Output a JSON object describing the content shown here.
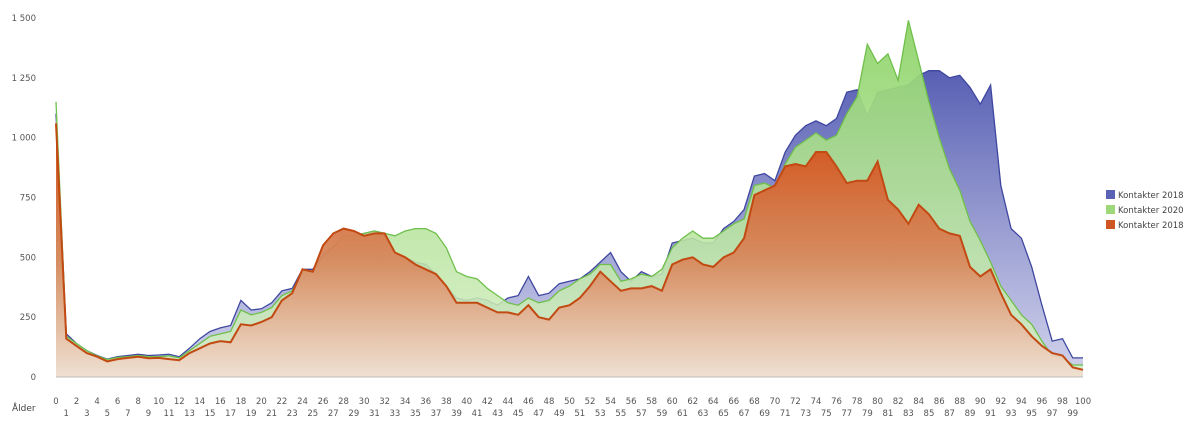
{
  "caption_fragment": "",
  "chart_data": {
    "type": "area",
    "title": "",
    "xlabel": "Ålder",
    "ylabel": "",
    "xlim": [
      0,
      100
    ],
    "ylim": [
      0,
      1500
    ],
    "y_ticks": [
      0,
      250,
      500,
      750,
      1000,
      1250,
      1500
    ],
    "y_tick_labels": [
      "0",
      "250",
      "500",
      "750",
      "1 000",
      "1 250",
      "1 500"
    ],
    "x_ticks_even": [
      "0",
      "2",
      "4",
      "6",
      "8",
      "10",
      "12",
      "14",
      "16",
      "18",
      "20",
      "22",
      "24",
      "26",
      "28",
      "30",
      "32",
      "34",
      "36",
      "38",
      "40",
      "42",
      "44",
      "46",
      "48",
      "50",
      "52",
      "54",
      "56",
      "58",
      "60",
      "62",
      "64",
      "66",
      "68",
      "70",
      "72",
      "74",
      "76",
      "78",
      "80",
      "82",
      "84",
      "86",
      "88",
      "90",
      "92",
      "94",
      "96",
      "98",
      "100"
    ],
    "x_ticks_odd": [
      "1",
      "3",
      "5",
      "7",
      "9",
      "11",
      "13",
      "15",
      "17",
      "19",
      "21",
      "23",
      "25",
      "27",
      "29",
      "31",
      "33",
      "35",
      "37",
      "39",
      "41",
      "43",
      "45",
      "47",
      "49",
      "51",
      "53",
      "55",
      "57",
      "59",
      "61",
      "63",
      "65",
      "67",
      "69",
      "71",
      "73",
      "75",
      "77",
      "79",
      "81",
      "83",
      "85",
      "87",
      "89",
      "91",
      "93",
      "95",
      "97",
      "99"
    ],
    "grid": false,
    "legend_position": "right",
    "series": [
      {
        "name": "Kontakter 2018",
        "color": "#5a62b6",
        "x": [
          0,
          1,
          2,
          3,
          4,
          5,
          6,
          7,
          8,
          9,
          10,
          11,
          12,
          13,
          14,
          15,
          16,
          17,
          18,
          19,
          20,
          21,
          22,
          23,
          24,
          25,
          26,
          27,
          28,
          29,
          30,
          31,
          32,
          33,
          34,
          35,
          36,
          37,
          38,
          39,
          40,
          41,
          42,
          43,
          44,
          45,
          46,
          47,
          48,
          49,
          50,
          51,
          52,
          53,
          54,
          55,
          56,
          57,
          58,
          59,
          60,
          61,
          62,
          63,
          64,
          65,
          66,
          67,
          68,
          69,
          70,
          71,
          72,
          73,
          74,
          75,
          76,
          77,
          78,
          79,
          80,
          81,
          82,
          83,
          84,
          85,
          86,
          87,
          88,
          89,
          90,
          91,
          92,
          93,
          94,
          95,
          96,
          97,
          98,
          99,
          100
        ],
        "y": [
          1100,
          180,
          140,
          110,
          90,
          75,
          85,
          90,
          95,
          90,
          92,
          95,
          85,
          120,
          160,
          190,
          205,
          215,
          320,
          280,
          285,
          310,
          360,
          370,
          450,
          450,
          510,
          545,
          590,
          590,
          600,
          610,
          600,
          520,
          500,
          480,
          470,
          430,
          380,
          330,
          320,
          330,
          320,
          300,
          330,
          340,
          420,
          340,
          350,
          390,
          400,
          410,
          440,
          480,
          520,
          440,
          400,
          440,
          420,
          430,
          560,
          570,
          580,
          560,
          560,
          620,
          650,
          700,
          840,
          850,
          820,
          940,
          1010,
          1050,
          1070,
          1050,
          1080,
          1190,
          1200,
          1090,
          1190,
          1200,
          1210,
          1220,
          1260,
          1280,
          1280,
          1250,
          1260,
          1210,
          1140,
          1220,
          800,
          620,
          580,
          460,
          300,
          150,
          160,
          80,
          80
        ]
      },
      {
        "name": "Kontakter 2020",
        "color": "#9ed87a",
        "x": [
          0,
          1,
          2,
          3,
          4,
          5,
          6,
          7,
          8,
          9,
          10,
          11,
          12,
          13,
          14,
          15,
          16,
          17,
          18,
          19,
          20,
          21,
          22,
          23,
          24,
          25,
          26,
          27,
          28,
          29,
          30,
          31,
          32,
          33,
          34,
          35,
          36,
          37,
          38,
          39,
          40,
          41,
          42,
          43,
          44,
          45,
          46,
          47,
          48,
          49,
          50,
          51,
          52,
          53,
          54,
          55,
          56,
          57,
          58,
          59,
          60,
          61,
          62,
          63,
          64,
          65,
          66,
          67,
          68,
          69,
          70,
          71,
          72,
          73,
          74,
          75,
          76,
          77,
          78,
          79,
          80,
          81,
          82,
          83,
          84,
          85,
          86,
          87,
          88,
          89,
          90,
          91,
          92,
          93,
          94,
          95,
          96,
          97,
          98,
          99,
          100
        ],
        "y": [
          1150,
          170,
          140,
          110,
          88,
          73,
          82,
          85,
          90,
          85,
          85,
          88,
          80,
          110,
          140,
          170,
          180,
          190,
          280,
          260,
          270,
          290,
          340,
          360,
          440,
          440,
          500,
          540,
          590,
          590,
          600,
          610,
          600,
          590,
          610,
          620,
          620,
          600,
          540,
          440,
          420,
          410,
          370,
          340,
          310,
          300,
          330,
          310,
          320,
          360,
          380,
          410,
          430,
          470,
          470,
          400,
          410,
          430,
          420,
          450,
          540,
          580,
          610,
          580,
          580,
          610,
          640,
          660,
          800,
          810,
          790,
          890,
          960,
          990,
          1020,
          990,
          1010,
          1100,
          1170,
          1390,
          1310,
          1350,
          1240,
          1490,
          1320,
          1150,
          1000,
          870,
          780,
          650,
          570,
          480,
          380,
          320,
          260,
          220,
          150,
          90,
          80,
          50,
          50
        ]
      },
      {
        "name": "Kontakter 2018",
        "color": "#cf5522",
        "x": [
          0,
          1,
          2,
          3,
          4,
          5,
          6,
          7,
          8,
          9,
          10,
          11,
          12,
          13,
          14,
          15,
          16,
          17,
          18,
          19,
          20,
          21,
          22,
          23,
          24,
          25,
          26,
          27,
          28,
          29,
          30,
          31,
          32,
          33,
          34,
          35,
          36,
          37,
          38,
          39,
          40,
          41,
          42,
          43,
          44,
          45,
          46,
          47,
          48,
          49,
          50,
          51,
          52,
          53,
          54,
          55,
          56,
          57,
          58,
          59,
          60,
          61,
          62,
          63,
          64,
          65,
          66,
          67,
          68,
          69,
          70,
          71,
          72,
          73,
          74,
          75,
          76,
          77,
          78,
          79,
          80,
          81,
          82,
          83,
          84,
          85,
          86,
          87,
          88,
          89,
          90,
          91,
          92,
          93,
          94,
          95,
          96,
          97,
          98,
          99,
          100
        ],
        "y": [
          1060,
          160,
          130,
          100,
          85,
          65,
          75,
          80,
          85,
          78,
          80,
          75,
          70,
          100,
          120,
          140,
          150,
          145,
          220,
          215,
          230,
          250,
          320,
          350,
          450,
          440,
          550,
          600,
          620,
          610,
          590,
          600,
          600,
          520,
          500,
          470,
          450,
          430,
          380,
          310,
          310,
          310,
          290,
          270,
          270,
          260,
          300,
          250,
          240,
          290,
          300,
          330,
          380,
          440,
          400,
          360,
          370,
          370,
          380,
          360,
          470,
          490,
          500,
          470,
          460,
          500,
          520,
          580,
          760,
          780,
          800,
          880,
          890,
          880,
          940,
          940,
          880,
          810,
          820,
          820,
          900,
          740,
          700,
          640,
          720,
          680,
          620,
          600,
          590,
          460,
          420,
          450,
          350,
          260,
          220,
          170,
          130,
          100,
          90,
          40,
          30
        ]
      }
    ]
  }
}
